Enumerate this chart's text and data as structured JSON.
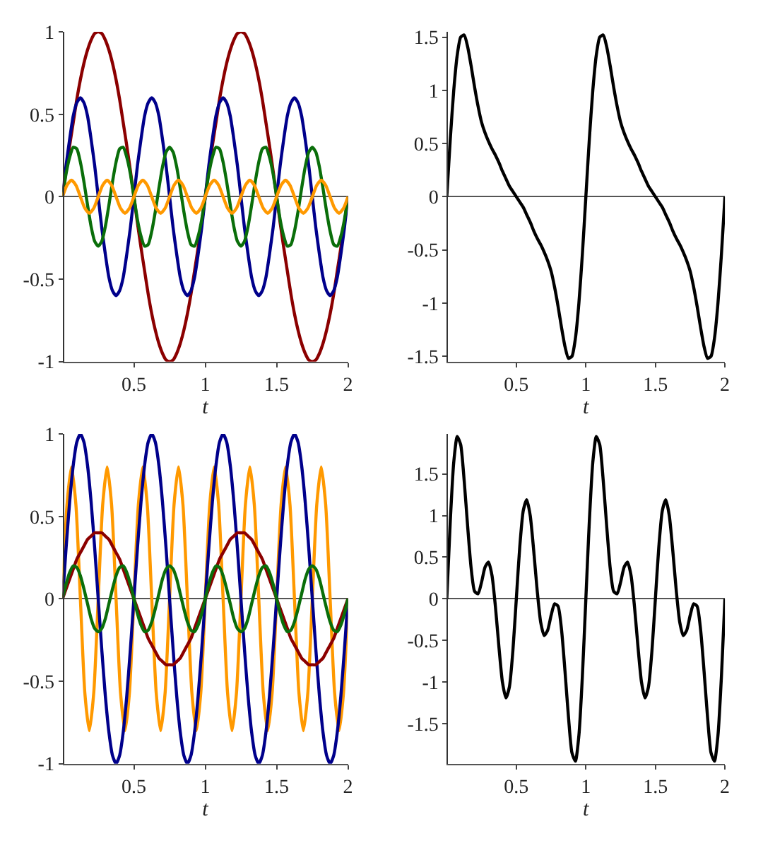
{
  "chart_data": [
    {
      "type": "line",
      "xlabel": "t",
      "xlim": [
        0,
        2
      ],
      "xticks": [
        0.5,
        1,
        1.5,
        2
      ],
      "ylim": [
        -1,
        1
      ],
      "yticks": [
        -1,
        -0.5,
        0,
        0.5,
        1
      ],
      "x": [
        0,
        0.025,
        0.05,
        0.075,
        0.1,
        0.125,
        0.15,
        0.175,
        0.2,
        0.225,
        0.25,
        0.275,
        0.3,
        0.325,
        0.35,
        0.375,
        0.4,
        0.425,
        0.45,
        0.475,
        0.5,
        0.525,
        0.55,
        0.575,
        0.6,
        0.625,
        0.65,
        0.675,
        0.7,
        0.725,
        0.75,
        0.775,
        0.8,
        0.825,
        0.85,
        0.875,
        0.9,
        0.925,
        0.95,
        0.975,
        1,
        1.025,
        1.05,
        1.075,
        1.1,
        1.125,
        1.15,
        1.175,
        1.2,
        1.225,
        1.25,
        1.275,
        1.3,
        1.325,
        1.35,
        1.375,
        1.4,
        1.425,
        1.45,
        1.475,
        1.5,
        1.525,
        1.55,
        1.575,
        1.6,
        1.625,
        1.65,
        1.675,
        1.7,
        1.725,
        1.75,
        1.775,
        1.8,
        1.825,
        1.85,
        1.875,
        1.9,
        1.925,
        1.95,
        1.975,
        2
      ],
      "series": [
        {
          "color": "#8b0000",
          "values": [
            0,
            0.16,
            0.31,
            0.45,
            0.59,
            0.71,
            0.81,
            0.89,
            0.95,
            0.99,
            1,
            0.99,
            0.95,
            0.89,
            0.81,
            0.71,
            0.59,
            0.45,
            0.31,
            0.16,
            0,
            -0.16,
            -0.31,
            -0.45,
            -0.59,
            -0.71,
            -0.81,
            -0.89,
            -0.95,
            -0.99,
            -1,
            -0.99,
            -0.95,
            -0.89,
            -0.81,
            -0.71,
            -0.59,
            -0.45,
            -0.31,
            -0.16,
            0,
            0.16,
            0.31,
            0.45,
            0.59,
            0.71,
            0.81,
            0.89,
            0.95,
            0.99,
            1,
            0.99,
            0.95,
            0.89,
            0.81,
            0.71,
            0.59,
            0.45,
            0.31,
            0.16,
            0,
            -0.16,
            -0.31,
            -0.45,
            -0.59,
            -0.71,
            -0.81,
            -0.89,
            -0.95,
            -0.99,
            -1,
            -0.99,
            -0.95,
            -0.89,
            -0.81,
            -0.71,
            -0.59,
            -0.45,
            -0.31,
            -0.16,
            0
          ]
        },
        {
          "color": "#00008b",
          "values": [
            0,
            0.19,
            0.35,
            0.49,
            0.57,
            0.6,
            0.57,
            0.49,
            0.35,
            0.19,
            0,
            -0.19,
            -0.35,
            -0.49,
            -0.57,
            -0.6,
            -0.57,
            -0.49,
            -0.35,
            -0.19,
            0,
            0.19,
            0.35,
            0.49,
            0.57,
            0.6,
            0.57,
            0.49,
            0.35,
            0.19,
            0,
            -0.19,
            -0.35,
            -0.49,
            -0.57,
            -0.6,
            -0.57,
            -0.49,
            -0.35,
            -0.19,
            0,
            0.19,
            0.35,
            0.49,
            0.57,
            0.6,
            0.57,
            0.49,
            0.35,
            0.19,
            0,
            -0.19,
            -0.35,
            -0.49,
            -0.57,
            -0.6,
            -0.57,
            -0.49,
            -0.35,
            -0.19,
            0,
            0.19,
            0.35,
            0.49,
            0.57,
            0.6,
            0.57,
            0.49,
            0.35,
            0.19,
            0,
            -0.19,
            -0.35,
            -0.49,
            -0.57,
            -0.6,
            -0.57,
            -0.49,
            -0.35,
            -0.19,
            0
          ]
        },
        {
          "color": "#0a6e0a",
          "values": [
            0,
            0.14,
            0.24,
            0.3,
            0.29,
            0.21,
            0.09,
            -0.05,
            -0.18,
            -0.27,
            -0.3,
            -0.27,
            -0.18,
            -0.05,
            0.09,
            0.21,
            0.29,
            0.3,
            0.24,
            0.14,
            0,
            -0.14,
            -0.24,
            -0.3,
            -0.29,
            -0.21,
            -0.09,
            0.05,
            0.18,
            0.27,
            0.3,
            0.27,
            0.18,
            0.05,
            -0.09,
            -0.21,
            -0.29,
            -0.3,
            -0.24,
            -0.14,
            0,
            0.14,
            0.24,
            0.3,
            0.29,
            0.21,
            0.09,
            -0.05,
            -0.18,
            -0.27,
            -0.3,
            -0.27,
            -0.18,
            -0.05,
            0.09,
            0.21,
            0.29,
            0.3,
            0.24,
            0.14,
            0,
            -0.14,
            -0.24,
            -0.3,
            -0.29,
            -0.21,
            -0.09,
            0.05,
            0.18,
            0.27,
            0.3,
            0.27,
            0.18,
            0.05,
            -0.09,
            -0.21,
            -0.29,
            -0.3,
            -0.24,
            -0.14,
            0
          ]
        },
        {
          "color": "#ff9900",
          "x": [
            0,
            0.03125,
            0.0625,
            0.09375,
            0.125,
            0.15625,
            0.1875,
            0.21875,
            0.25,
            0.28125,
            0.3125,
            0.34375,
            0.375,
            0.40625,
            0.4375,
            0.46875,
            0.5,
            0.53125,
            0.5625,
            0.59375,
            0.625,
            0.65625,
            0.6875,
            0.71875,
            0.75,
            0.78125,
            0.8125,
            0.84375,
            0.875,
            0.90625,
            0.9375,
            0.96875,
            1,
            1.03125,
            1.0625,
            1.09375,
            1.125,
            1.15625,
            1.1875,
            1.21875,
            1.25,
            1.28125,
            1.3125,
            1.34375,
            1.375,
            1.40625,
            1.4375,
            1.46875,
            1.5,
            1.53125,
            1.5625,
            1.59375,
            1.625,
            1.65625,
            1.6875,
            1.71875,
            1.75,
            1.78125,
            1.8125,
            1.84375,
            1.875,
            1.90625,
            1.9375,
            1.96875,
            2
          ],
          "values": [
            0,
            0.07,
            0.1,
            0.07,
            0,
            -0.07,
            -0.1,
            -0.07,
            0,
            0.07,
            0.1,
            0.07,
            0,
            -0.07,
            -0.1,
            -0.07,
            0,
            0.07,
            0.1,
            0.07,
            0,
            -0.07,
            -0.1,
            -0.07,
            0,
            0.07,
            0.1,
            0.07,
            0,
            -0.07,
            -0.1,
            -0.07,
            0,
            0.07,
            0.1,
            0.07,
            0,
            -0.07,
            -0.1,
            -0.07,
            0,
            0.07,
            0.1,
            0.07,
            0,
            -0.07,
            -0.1,
            -0.07,
            0,
            0.07,
            0.1,
            0.07,
            0,
            -0.07,
            -0.1,
            -0.07,
            0,
            0.07,
            0.1,
            0.07,
            0,
            -0.07,
            -0.1,
            -0.07,
            0
          ]
        }
      ]
    },
    {
      "type": "line",
      "xlabel": "t",
      "xlim": [
        0,
        2
      ],
      "xticks": [
        0.5,
        1,
        1.5,
        2
      ],
      "ylim": [
        -1.55,
        1.55
      ],
      "yticks": [
        -1.5,
        -1,
        -0.5,
        0,
        0.5,
        1,
        1.5
      ],
      "x": [
        0,
        0.025,
        0.05,
        0.075,
        0.1,
        0.125,
        0.15,
        0.175,
        0.2,
        0.225,
        0.25,
        0.275,
        0.3,
        0.325,
        0.35,
        0.375,
        0.4,
        0.425,
        0.45,
        0.475,
        0.5,
        0.525,
        0.55,
        0.575,
        0.6,
        0.625,
        0.65,
        0.675,
        0.7,
        0.725,
        0.75,
        0.775,
        0.8,
        0.825,
        0.85,
        0.875,
        0.9,
        0.925,
        0.95,
        0.975,
        1,
        1.025,
        1.05,
        1.075,
        1.1,
        1.125,
        1.15,
        1.175,
        1.2,
        1.225,
        1.25,
        1.275,
        1.3,
        1.325,
        1.35,
        1.375,
        1.4,
        1.425,
        1.45,
        1.475,
        1.5,
        1.525,
        1.55,
        1.575,
        1.6,
        1.625,
        1.65,
        1.675,
        1.7,
        1.725,
        1.75,
        1.775,
        1.8,
        1.825,
        1.85,
        1.875,
        1.9,
        1.925,
        1.95,
        1.975,
        2
      ],
      "series": [
        {
          "color": "#000000",
          "values": [
            0,
            0.54,
            1,
            1.33,
            1.5,
            1.52,
            1.41,
            1.23,
            1.03,
            0.85,
            0.7,
            0.6,
            0.52,
            0.45,
            0.39,
            0.32,
            0.24,
            0.17,
            0.1,
            0.05,
            0,
            -0.05,
            -0.1,
            -0.17,
            -0.24,
            -0.32,
            -0.39,
            -0.45,
            -0.52,
            -0.6,
            -0.7,
            -0.85,
            -1.03,
            -1.23,
            -1.41,
            -1.52,
            -1.5,
            -1.33,
            -1,
            -0.54,
            0,
            0.54,
            1,
            1.33,
            1.5,
            1.52,
            1.41,
            1.23,
            1.03,
            0.85,
            0.7,
            0.6,
            0.52,
            0.45,
            0.39,
            0.32,
            0.24,
            0.17,
            0.1,
            0.05,
            0,
            -0.05,
            -0.1,
            -0.17,
            -0.24,
            -0.32,
            -0.39,
            -0.45,
            -0.52,
            -0.6,
            -0.7,
            -0.85,
            -1.03,
            -1.23,
            -1.41,
            -1.52,
            -1.5,
            -1.33,
            -1,
            -0.54,
            0
          ]
        }
      ]
    },
    {
      "type": "line",
      "xlabel": "t",
      "xlim": [
        0,
        2
      ],
      "xticks": [
        0.5,
        1,
        1.5,
        2
      ],
      "ylim": [
        -1,
        1
      ],
      "yticks": [
        -1,
        -0.5,
        0,
        0.5,
        1
      ],
      "x": [
        0,
        0.025,
        0.05,
        0.075,
        0.1,
        0.125,
        0.15,
        0.175,
        0.2,
        0.225,
        0.25,
        0.275,
        0.3,
        0.325,
        0.35,
        0.375,
        0.4,
        0.425,
        0.45,
        0.475,
        0.5,
        0.525,
        0.55,
        0.575,
        0.6,
        0.625,
        0.65,
        0.675,
        0.7,
        0.725,
        0.75,
        0.775,
        0.8,
        0.825,
        0.85,
        0.875,
        0.9,
        0.925,
        0.95,
        0.975,
        1,
        1.025,
        1.05,
        1.075,
        1.1,
        1.125,
        1.15,
        1.175,
        1.2,
        1.225,
        1.25,
        1.275,
        1.3,
        1.325,
        1.35,
        1.375,
        1.4,
        1.425,
        1.45,
        1.475,
        1.5,
        1.525,
        1.55,
        1.575,
        1.6,
        1.625,
        1.65,
        1.675,
        1.7,
        1.725,
        1.75,
        1.775,
        1.8,
        1.825,
        1.85,
        1.875,
        1.9,
        1.925,
        1.95,
        1.975,
        2
      ],
      "series": [
        {
          "color": "#ff9900",
          "x": [
            0,
            0.03125,
            0.0625,
            0.09375,
            0.125,
            0.15625,
            0.1875,
            0.21875,
            0.25,
            0.28125,
            0.3125,
            0.34375,
            0.375,
            0.40625,
            0.4375,
            0.46875,
            0.5,
            0.53125,
            0.5625,
            0.59375,
            0.625,
            0.65625,
            0.6875,
            0.71875,
            0.75,
            0.78125,
            0.8125,
            0.84375,
            0.875,
            0.90625,
            0.9375,
            0.96875,
            1,
            1.03125,
            1.0625,
            1.09375,
            1.125,
            1.15625,
            1.1875,
            1.21875,
            1.25,
            1.28125,
            1.3125,
            1.34375,
            1.375,
            1.40625,
            1.4375,
            1.46875,
            1.5,
            1.53125,
            1.5625,
            1.59375,
            1.625,
            1.65625,
            1.6875,
            1.71875,
            1.75,
            1.78125,
            1.8125,
            1.84375,
            1.875,
            1.90625,
            1.9375,
            1.96875,
            2
          ],
          "values": [
            0,
            0.57,
            0.8,
            0.57,
            0,
            -0.57,
            -0.8,
            -0.57,
            0,
            0.57,
            0.8,
            0.57,
            0,
            -0.57,
            -0.8,
            -0.57,
            0,
            0.57,
            0.8,
            0.57,
            0,
            -0.57,
            -0.8,
            -0.57,
            0,
            0.57,
            0.8,
            0.57,
            0,
            -0.57,
            -0.8,
            -0.57,
            0,
            0.57,
            0.8,
            0.57,
            0,
            -0.57,
            -0.8,
            -0.57,
            0,
            0.57,
            0.8,
            0.57,
            0,
            -0.57,
            -0.8,
            -0.57,
            0,
            0.57,
            0.8,
            0.57,
            0,
            -0.57,
            -0.8,
            -0.57,
            0,
            0.57,
            0.8,
            0.57,
            0,
            -0.57,
            -0.8,
            -0.57,
            0
          ]
        },
        {
          "color": "#00008b",
          "values": [
            0,
            0.31,
            0.59,
            0.81,
            0.95,
            1,
            0.95,
            0.81,
            0.59,
            0.31,
            0,
            -0.31,
            -0.59,
            -0.81,
            -0.95,
            -1,
            -0.95,
            -0.81,
            -0.59,
            -0.31,
            0,
            0.31,
            0.59,
            0.81,
            0.95,
            1,
            0.95,
            0.81,
            0.59,
            0.31,
            0,
            -0.31,
            -0.59,
            -0.81,
            -0.95,
            -1,
            -0.95,
            -0.81,
            -0.59,
            -0.31,
            0,
            0.31,
            0.59,
            0.81,
            0.95,
            1,
            0.95,
            0.81,
            0.59,
            0.31,
            0,
            -0.31,
            -0.59,
            -0.81,
            -0.95,
            -1,
            -0.95,
            -0.81,
            -0.59,
            -0.31,
            0,
            0.31,
            0.59,
            0.81,
            0.95,
            1,
            0.95,
            0.81,
            0.59,
            0.31,
            0,
            -0.31,
            -0.59,
            -0.81,
            -0.95,
            -1,
            -0.95,
            -0.81,
            -0.59,
            -0.31,
            0
          ]
        },
        {
          "color": "#8b0000",
          "values": [
            0,
            0.06,
            0.12,
            0.18,
            0.24,
            0.28,
            0.32,
            0.36,
            0.38,
            0.4,
            0.4,
            0.4,
            0.38,
            0.36,
            0.32,
            0.28,
            0.24,
            0.18,
            0.12,
            0.06,
            0,
            -0.06,
            -0.12,
            -0.18,
            -0.24,
            -0.28,
            -0.32,
            -0.36,
            -0.38,
            -0.4,
            -0.4,
            -0.4,
            -0.38,
            -0.36,
            -0.32,
            -0.28,
            -0.24,
            -0.18,
            -0.12,
            -0.06,
            0,
            0.06,
            0.12,
            0.18,
            0.24,
            0.28,
            0.32,
            0.36,
            0.38,
            0.4,
            0.4,
            0.4,
            0.38,
            0.36,
            0.32,
            0.28,
            0.24,
            0.18,
            0.12,
            0.06,
            0,
            -0.06,
            -0.12,
            -0.18,
            -0.24,
            -0.28,
            -0.32,
            -0.36,
            -0.38,
            -0.4,
            -0.4,
            -0.4,
            -0.38,
            -0.36,
            -0.32,
            -0.28,
            -0.24,
            -0.18,
            -0.12,
            -0.06,
            0
          ]
        },
        {
          "color": "#0a6e0a",
          "values": [
            0,
            0.09,
            0.16,
            0.2,
            0.19,
            0.14,
            0.06,
            -0.03,
            -0.12,
            -0.18,
            -0.2,
            -0.18,
            -0.12,
            -0.03,
            0.06,
            0.14,
            0.19,
            0.2,
            0.16,
            0.09,
            0,
            -0.09,
            -0.16,
            -0.2,
            -0.19,
            -0.14,
            -0.06,
            0.03,
            0.12,
            0.18,
            0.2,
            0.18,
            0.12,
            0.03,
            -0.06,
            -0.14,
            -0.19,
            -0.2,
            -0.16,
            -0.09,
            0,
            0.09,
            0.16,
            0.2,
            0.19,
            0.14,
            0.06,
            -0.03,
            -0.12,
            -0.18,
            -0.2,
            -0.18,
            -0.12,
            -0.03,
            0.06,
            0.14,
            0.19,
            0.2,
            0.16,
            0.09,
            0,
            -0.09,
            -0.16,
            -0.2,
            -0.19,
            -0.14,
            -0.06,
            0.03,
            0.12,
            0.18,
            0.2,
            0.18,
            0.12,
            0.03,
            -0.06,
            -0.14,
            -0.19,
            -0.2,
            -0.16,
            -0.09,
            0
          ]
        }
      ]
    },
    {
      "type": "line",
      "xlabel": "t",
      "xlim": [
        0,
        2
      ],
      "xticks": [
        0.5,
        1,
        1.5,
        2
      ],
      "ylim": [
        -1.98,
        1.98
      ],
      "yticks": [
        -1.5,
        -1,
        -0.5,
        0,
        0.5,
        1,
        1.5
      ],
      "x": [
        0,
        0.025,
        0.05,
        0.075,
        0.1,
        0.125,
        0.15,
        0.175,
        0.2,
        0.225,
        0.25,
        0.275,
        0.3,
        0.325,
        0.35,
        0.375,
        0.4,
        0.425,
        0.45,
        0.475,
        0.5,
        0.525,
        0.55,
        0.575,
        0.6,
        0.625,
        0.65,
        0.675,
        0.7,
        0.725,
        0.75,
        0.775,
        0.8,
        0.825,
        0.85,
        0.875,
        0.9,
        0.925,
        0.95,
        0.975,
        1,
        1.025,
        1.05,
        1.075,
        1.1,
        1.125,
        1.15,
        1.175,
        1.2,
        1.225,
        1.25,
        1.275,
        1.3,
        1.325,
        1.35,
        1.375,
        1.4,
        1.425,
        1.45,
        1.475,
        1.5,
        1.525,
        1.55,
        1.575,
        1.6,
        1.625,
        1.65,
        1.675,
        1.7,
        1.725,
        1.75,
        1.775,
        1.8,
        1.825,
        1.85,
        1.875,
        1.9,
        1.925,
        1.95,
        1.975,
        2
      ],
      "series": [
        {
          "color": "#000000",
          "values": [
            0,
            0.93,
            1.64,
            1.95,
            1.85,
            1.42,
            0.87,
            0.37,
            0.09,
            0.06,
            0.2,
            0.38,
            0.44,
            0.28,
            -0.1,
            -0.58,
            -1,
            -1.19,
            -1.06,
            -0.63,
            0,
            0.63,
            1.06,
            1.19,
            1,
            0.58,
            0.1,
            -0.28,
            -0.44,
            -0.38,
            -0.2,
            -0.06,
            -0.09,
            -0.37,
            -0.87,
            -1.42,
            -1.85,
            -1.95,
            -1.64,
            -0.93,
            0,
            0.93,
            1.64,
            1.95,
            1.85,
            1.42,
            0.87,
            0.37,
            0.09,
            0.06,
            0.2,
            0.38,
            0.44,
            0.28,
            -0.1,
            -0.58,
            -1,
            -1.19,
            -1.06,
            -0.63,
            0,
            0.63,
            1.06,
            1.19,
            1,
            0.58,
            0.1,
            -0.28,
            -0.44,
            -0.38,
            -0.2,
            -0.06,
            -0.09,
            -0.37,
            -0.87,
            -1.42,
            -1.85,
            -1.95,
            -1.64,
            -0.93,
            0
          ]
        }
      ]
    }
  ]
}
